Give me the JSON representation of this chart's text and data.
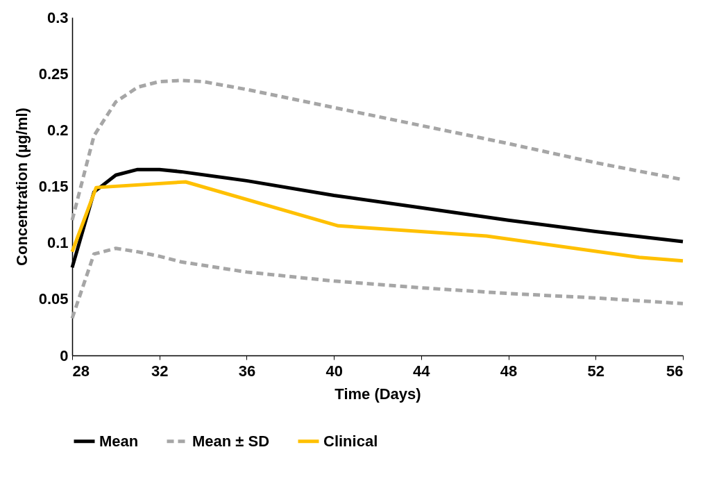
{
  "chart_data": {
    "type": "line",
    "xlabel": "Time (Days)",
    "ylabel": "Concentration (µg/ml)",
    "xlim": [
      28,
      56
    ],
    "xticks": [
      28,
      32,
      36,
      40,
      44,
      48,
      52,
      56
    ],
    "ylim": [
      0,
      0.3
    ],
    "yticks": [
      0,
      0.05,
      0.1,
      0.15,
      0.2,
      0.25,
      0.3
    ],
    "grid": false,
    "legend": "bottom",
    "marker": "none",
    "series": [
      {
        "name": "Mean",
        "color": "#000000",
        "line_style": "solid",
        "x": [
          28,
          29,
          30,
          31,
          32,
          33,
          36,
          40,
          44,
          48,
          52,
          56
        ],
        "values": [
          0.078,
          0.145,
          0.16,
          0.165,
          0.165,
          0.163,
          0.155,
          0.142,
          0.131,
          0.12,
          0.11,
          0.101
        ]
      },
      {
        "name": "Mean ± SD",
        "color": "#a6a6a6",
        "line_style": "dashed",
        "x": [
          28,
          29,
          30,
          31,
          32,
          33,
          34,
          36,
          40,
          44,
          48,
          52,
          56
        ],
        "values": [
          0.12,
          0.195,
          0.225,
          0.238,
          0.243,
          0.244,
          0.243,
          0.236,
          0.22,
          0.204,
          0.188,
          0.171,
          0.156
        ]
      },
      {
        "color": "#a6a6a6",
        "line_style": "dashed",
        "x": [
          28,
          29,
          30,
          31,
          32,
          33,
          36,
          40,
          44,
          48,
          52,
          56
        ],
        "values": [
          0.033,
          0.09,
          0.095,
          0.092,
          0.088,
          0.083,
          0.074,
          0.066,
          0.06,
          0.055,
          0.051,
          0.046
        ]
      },
      {
        "name": "Clinical",
        "color": "#ffc000",
        "line_style": "solid",
        "x": [
          28,
          29.1,
          33.2,
          40.2,
          47,
          54,
          56
        ],
        "values": [
          0.092,
          0.149,
          0.154,
          0.115,
          0.106,
          0.087,
          0.084
        ]
      }
    ]
  }
}
